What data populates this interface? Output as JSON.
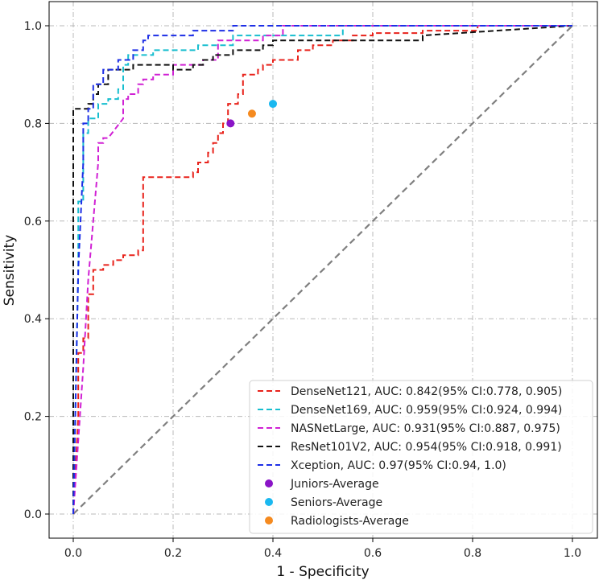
{
  "chart_data": {
    "type": "line",
    "xlabel": "1 - Specificity",
    "ylabel": "Sensitivity",
    "xlim": [
      -0.05,
      1.05
    ],
    "ylim": [
      -0.05,
      1.05
    ],
    "xticks": [
      0.0,
      0.2,
      0.4,
      0.6,
      0.8,
      1.0
    ],
    "yticks": [
      0.0,
      0.2,
      0.4,
      0.6,
      0.8,
      1.0
    ],
    "xtick_labels": [
      "0.0",
      "0.2",
      "0.4",
      "0.6",
      "0.8",
      "1.0"
    ],
    "ytick_labels": [
      "0.0",
      "0.2",
      "0.4",
      "0.6",
      "0.8",
      "1.0"
    ],
    "grid": true,
    "legend_position": "bottom-right",
    "diagonal": {
      "x": [
        0,
        1
      ],
      "y": [
        0,
        1
      ],
      "color": "#7f7f7f"
    },
    "series": [
      {
        "name": "DenseNet121, AUC: 0.842(95% CI:0.778, 0.905)",
        "color": "#e8221b",
        "x": [
          0,
          0.01,
          0.01,
          0.02,
          0.02,
          0.03,
          0.03,
          0.04,
          0.04,
          0.06,
          0.06,
          0.08,
          0.08,
          0.1,
          0.1,
          0.13,
          0.13,
          0.14,
          0.14,
          0.24,
          0.24,
          0.25,
          0.25,
          0.27,
          0.27,
          0.28,
          0.28,
          0.29,
          0.29,
          0.3,
          0.3,
          0.31,
          0.31,
          0.33,
          0.33,
          0.34,
          0.34,
          0.37,
          0.37,
          0.38,
          0.38,
          0.4,
          0.4,
          0.45,
          0.45,
          0.48,
          0.48,
          0.52,
          0.52,
          0.56,
          0.56,
          0.6,
          0.6,
          0.7,
          0.7,
          0.81,
          0.81,
          1.0
        ],
        "y": [
          0,
          0.2,
          0.33,
          0.33,
          0.36,
          0.36,
          0.45,
          0.45,
          0.5,
          0.5,
          0.51,
          0.51,
          0.52,
          0.52,
          0.53,
          0.53,
          0.54,
          0.54,
          0.69,
          0.69,
          0.7,
          0.7,
          0.72,
          0.72,
          0.74,
          0.74,
          0.76,
          0.76,
          0.78,
          0.78,
          0.8,
          0.8,
          0.84,
          0.84,
          0.86,
          0.86,
          0.9,
          0.9,
          0.91,
          0.91,
          0.92,
          0.92,
          0.93,
          0.93,
          0.95,
          0.95,
          0.96,
          0.96,
          0.97,
          0.97,
          0.98,
          0.98,
          0.985,
          0.985,
          0.99,
          0.99,
          1.0,
          1.0
        ]
      },
      {
        "name": "DenseNet169, AUC: 0.959(95% CI:0.924, 0.994)",
        "color": "#17becf",
        "x": [
          0,
          0.01,
          0.01,
          0.02,
          0.02,
          0.03,
          0.03,
          0.05,
          0.05,
          0.07,
          0.07,
          0.09,
          0.09,
          0.1,
          0.1,
          0.11,
          0.11,
          0.16,
          0.16,
          0.25,
          0.25,
          0.32,
          0.32,
          0.54,
          0.54,
          1.0
        ],
        "y": [
          0,
          0.5,
          0.64,
          0.64,
          0.78,
          0.78,
          0.81,
          0.81,
          0.84,
          0.84,
          0.85,
          0.85,
          0.87,
          0.87,
          0.92,
          0.92,
          0.94,
          0.94,
          0.95,
          0.95,
          0.96,
          0.96,
          0.98,
          0.98,
          1.0,
          1.0
        ]
      },
      {
        "name": "NASNetLarge, AUC: 0.931(95% CI:0.887, 0.975)",
        "color": "#d021d4",
        "x": [
          0,
          0.02,
          0.03,
          0.04,
          0.05,
          0.05,
          0.06,
          0.06,
          0.07,
          0.1,
          0.1,
          0.11,
          0.11,
          0.13,
          0.13,
          0.14,
          0.14,
          0.16,
          0.16,
          0.2,
          0.2,
          0.26,
          0.26,
          0.29,
          0.29,
          0.38,
          0.38,
          0.42,
          0.42,
          1.0
        ],
        "y": [
          0,
          0.3,
          0.48,
          0.6,
          0.72,
          0.76,
          0.76,
          0.77,
          0.77,
          0.81,
          0.85,
          0.85,
          0.86,
          0.86,
          0.88,
          0.88,
          0.89,
          0.89,
          0.9,
          0.9,
          0.92,
          0.92,
          0.93,
          0.93,
          0.97,
          0.97,
          0.98,
          0.98,
          1.0,
          1.0
        ]
      },
      {
        "name": "ResNet101V2, AUC: 0.954(95% CI:0.918, 0.991)",
        "color": "#111111",
        "x": [
          0,
          0.0,
          0.03,
          0.03,
          0.04,
          0.04,
          0.05,
          0.05,
          0.07,
          0.07,
          0.12,
          0.12,
          0.2,
          0.2,
          0.24,
          0.24,
          0.26,
          0.26,
          0.28,
          0.28,
          0.32,
          0.32,
          0.38,
          0.38,
          0.4,
          0.4,
          0.7,
          0.7,
          1.0
        ],
        "y": [
          0,
          0.83,
          0.83,
          0.84,
          0.84,
          0.86,
          0.86,
          0.88,
          0.88,
          0.91,
          0.91,
          0.92,
          0.92,
          0.91,
          0.91,
          0.92,
          0.92,
          0.93,
          0.93,
          0.94,
          0.94,
          0.95,
          0.95,
          0.96,
          0.96,
          0.97,
          0.97,
          0.98,
          1.0
        ]
      },
      {
        "name": "Xception, AUC: 0.97(95% CI:0.94, 1.0)",
        "color": "#1d2fe6",
        "x": [
          0,
          0.01,
          0.02,
          0.02,
          0.03,
          0.03,
          0.04,
          0.04,
          0.06,
          0.06,
          0.09,
          0.09,
          0.12,
          0.12,
          0.14,
          0.14,
          0.15,
          0.15,
          0.24,
          0.24,
          0.32,
          0.32,
          1.0
        ],
        "y": [
          0,
          0.5,
          0.72,
          0.8,
          0.8,
          0.83,
          0.83,
          0.88,
          0.88,
          0.91,
          0.91,
          0.93,
          0.93,
          0.95,
          0.95,
          0.97,
          0.97,
          0.98,
          0.98,
          0.99,
          0.99,
          1.0,
          1.0
        ]
      }
    ],
    "points": [
      {
        "name": "Juniors-Average",
        "color": "#8a14c7",
        "x": 0.315,
        "y": 0.8
      },
      {
        "name": "Seniors-Average",
        "color": "#1ab8f0",
        "x": 0.4,
        "y": 0.84
      },
      {
        "name": "Radiologists-Average",
        "color": "#f58a1f",
        "x": 0.358,
        "y": 0.82
      }
    ]
  }
}
